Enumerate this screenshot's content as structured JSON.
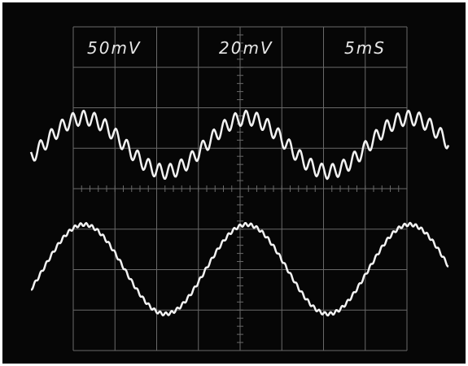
{
  "scope": {
    "settings": {
      "ch1_volts_per_div": "50mV",
      "ch2_volts_per_div": "20mV",
      "time_per_div": "5mS"
    }
  },
  "colors": {
    "screen_bg": "#060606",
    "trace": "#f2f2f2",
    "graticule": "#8a8a8a",
    "label_text": "#e6e6e6"
  }
}
